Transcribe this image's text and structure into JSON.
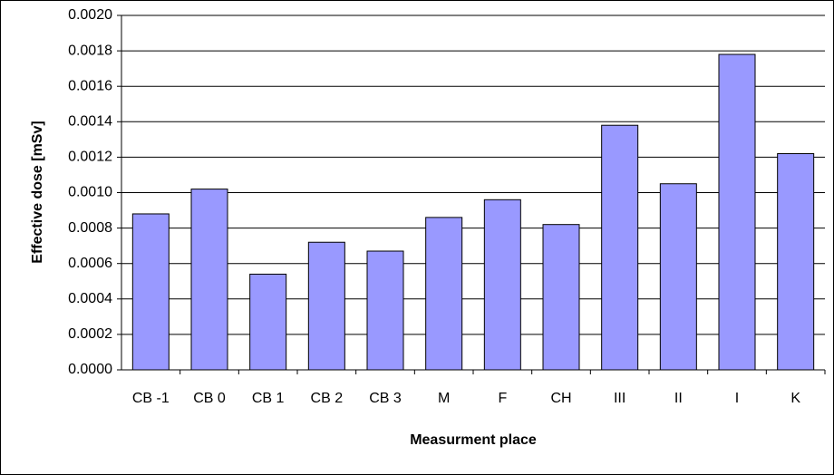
{
  "chart_data": {
    "type": "bar",
    "x_label": "Measurment place",
    "y_label": "Effective dose [mSv]",
    "categories": [
      "CB -1",
      "CB 0",
      "CB 1",
      "CB 2",
      "CB 3",
      "M",
      "F",
      "CH",
      "III",
      "II",
      "I",
      "K"
    ],
    "values": [
      0.00088,
      0.00102,
      0.00054,
      0.00072,
      0.00067,
      0.00086,
      0.00096,
      0.00082,
      0.00138,
      0.00105,
      0.00178,
      0.00122
    ],
    "color": "#9999ff",
    "ylim": [
      0,
      0.002
    ],
    "yticks": [
      {
        "value": 0,
        "label": "0.0000"
      },
      {
        "value": 0.0002,
        "label": "0.0002"
      },
      {
        "value": 0.0004,
        "label": "0.0004"
      },
      {
        "value": 0.0006,
        "label": "0.0006"
      },
      {
        "value": 0.0008,
        "label": "0.0008"
      },
      {
        "value": 0.001,
        "label": "0.0010"
      },
      {
        "value": 0.0012,
        "label": "0.0012"
      },
      {
        "value": 0.0014,
        "label": "0.0014"
      },
      {
        "value": 0.0016,
        "label": "0.0016"
      },
      {
        "value": 0.0018,
        "label": "0.0018"
      },
      {
        "value": 0.002,
        "label": "0.0020"
      }
    ],
    "grid": true
  }
}
